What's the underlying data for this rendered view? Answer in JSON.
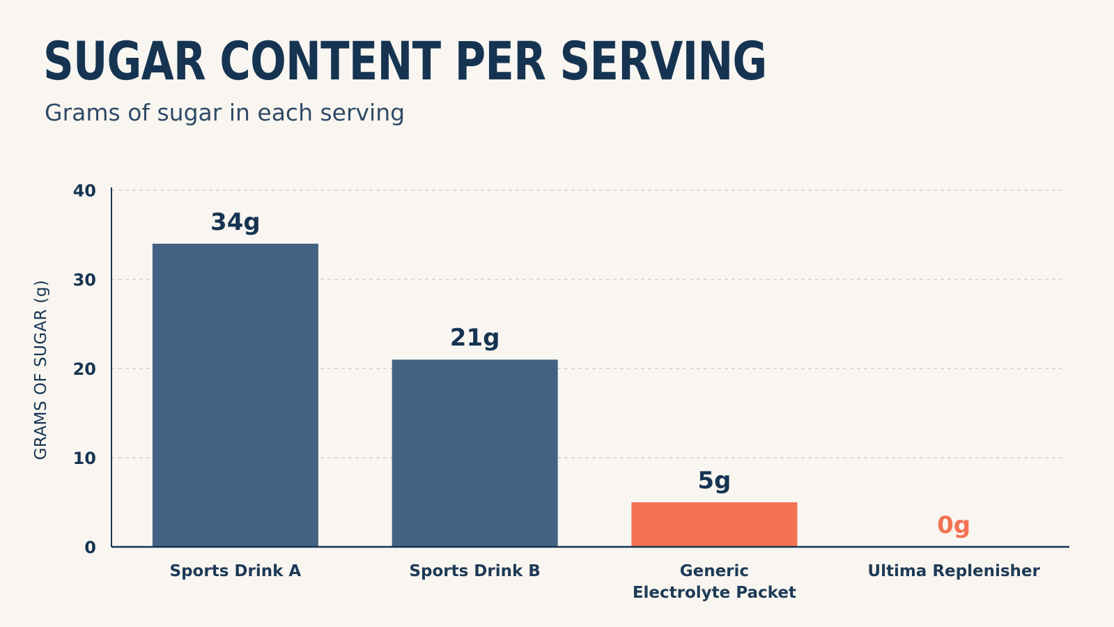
{
  "chart_data": {
    "type": "bar",
    "title": "SUGAR CONTENT PER SERVING",
    "subtitle": "Grams of sugar in each serving",
    "ylabel": "GRAMS OF SUGAR (g)",
    "xlabel": "",
    "ylim": [
      0,
      40
    ],
    "yticks": [
      "0",
      "10",
      "20",
      "30",
      "40"
    ],
    "grid": true,
    "categories": [
      [
        "Sports Drink A"
      ],
      [
        "Sports Drink B"
      ],
      [
        "Generic",
        "Electrolyte Packet"
      ],
      [
        "Ultima Replenisher"
      ]
    ],
    "values": [
      34,
      21,
      5,
      0
    ],
    "data_labels": [
      "34g",
      "21g",
      "5g",
      "0g"
    ],
    "bar_colors": [
      "#436283",
      "#436283",
      "#f27253",
      "#f27253"
    ],
    "label_colors": [
      "#163452",
      "#163452",
      "#163452",
      "#f27253"
    ]
  },
  "colors": {
    "background": "#f9f6f1",
    "text": "#163452",
    "grid": "#c9c9c9",
    "axis": "#163452"
  }
}
